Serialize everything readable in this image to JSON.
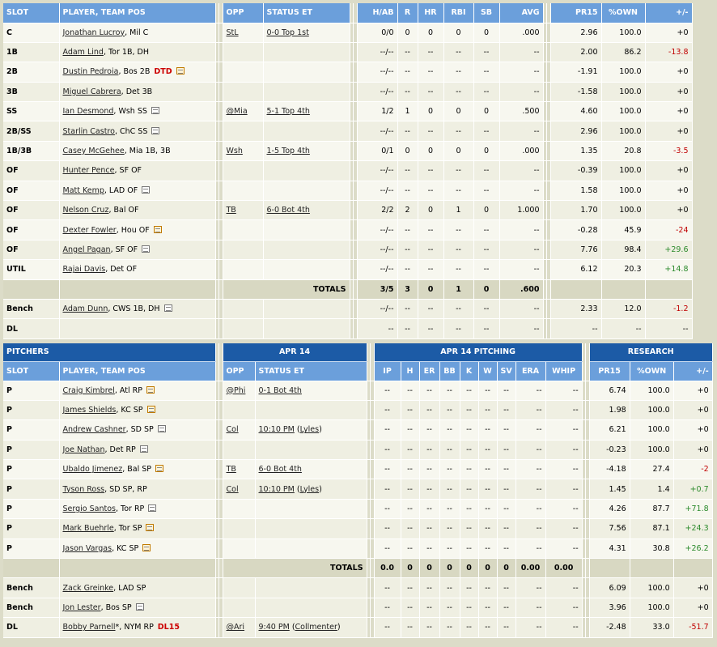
{
  "batters": {
    "headers": {
      "slot": "SLOT",
      "player": "PLAYER, TEAM POS",
      "opp": "OPP",
      "status": "STATUS ET",
      "hab": "H/AB",
      "r": "R",
      "hr": "HR",
      "rbi": "RBI",
      "sb": "SB",
      "avg": "AVG",
      "pr15": "PR15",
      "own": "%OWN",
      "pm": "+/-"
    },
    "rows": [
      {
        "slot": "C",
        "player": "Jonathan Lucroy",
        "team": ", Mil C",
        "note": "",
        "status_tag": "",
        "opp": "StL",
        "status": "0-0 Top 1st",
        "hab": "0/0",
        "r": "0",
        "hr": "0",
        "rbi": "0",
        "sb": "0",
        "avg": ".000",
        "pr15": "2.96",
        "own": "100.0",
        "pm": "+0",
        "pm_color": "#000000"
      },
      {
        "slot": "1B",
        "player": "Adam Lind",
        "team": ", Tor 1B, DH",
        "note": "",
        "status_tag": "",
        "opp": "",
        "status": "",
        "hab": "--/--",
        "r": "--",
        "hr": "--",
        "rbi": "--",
        "sb": "--",
        "avg": "--",
        "pr15": "2.00",
        "own": "86.2",
        "pm": "-13.8",
        "pm_color": "#c00000"
      },
      {
        "slot": "2B",
        "player": "Dustin Pedroia",
        "team": ", Bos 2B",
        "note": "new",
        "status_tag": "DTD",
        "opp": "",
        "status": "",
        "hab": "--/--",
        "r": "--",
        "hr": "--",
        "rbi": "--",
        "sb": "--",
        "avg": "--",
        "pr15": "-1.91",
        "own": "100.0",
        "pm": "+0",
        "pm_color": "#000000"
      },
      {
        "slot": "3B",
        "player": "Miguel Cabrera",
        "team": ", Det 3B",
        "note": "",
        "status_tag": "",
        "opp": "",
        "status": "",
        "hab": "--/--",
        "r": "--",
        "hr": "--",
        "rbi": "--",
        "sb": "--",
        "avg": "--",
        "pr15": "-1.58",
        "own": "100.0",
        "pm": "+0",
        "pm_color": "#000000"
      },
      {
        "slot": "SS",
        "player": "Ian Desmond",
        "team": ", Wsh SS",
        "note": "old",
        "status_tag": "",
        "opp": "@Mia",
        "status": "5-1 Top 4th",
        "hab": "1/2",
        "r": "1",
        "hr": "0",
        "rbi": "0",
        "sb": "0",
        "avg": ".500",
        "pr15": "4.60",
        "own": "100.0",
        "pm": "+0",
        "pm_color": "#000000"
      },
      {
        "slot": "2B/SS",
        "player": "Starlin Castro",
        "team": ", ChC SS",
        "note": "old",
        "status_tag": "",
        "opp": "",
        "status": "",
        "hab": "--/--",
        "r": "--",
        "hr": "--",
        "rbi": "--",
        "sb": "--",
        "avg": "--",
        "pr15": "2.96",
        "own": "100.0",
        "pm": "+0",
        "pm_color": "#000000"
      },
      {
        "slot": "1B/3B",
        "player": "Casey McGehee",
        "team": ", Mia 1B, 3B",
        "note": "",
        "status_tag": "",
        "opp": "Wsh",
        "status": "1-5 Top 4th",
        "hab": "0/1",
        "r": "0",
        "hr": "0",
        "rbi": "0",
        "sb": "0",
        "avg": ".000",
        "pr15": "1.35",
        "own": "20.8",
        "pm": "-3.5",
        "pm_color": "#c00000"
      },
      {
        "slot": "OF",
        "player": "Hunter Pence",
        "team": ", SF OF",
        "note": "",
        "status_tag": "",
        "opp": "",
        "status": "",
        "hab": "--/--",
        "r": "--",
        "hr": "--",
        "rbi": "--",
        "sb": "--",
        "avg": "--",
        "pr15": "-0.39",
        "own": "100.0",
        "pm": "+0",
        "pm_color": "#000000"
      },
      {
        "slot": "OF",
        "player": "Matt Kemp",
        "team": ", LAD OF",
        "note": "old",
        "status_tag": "",
        "opp": "",
        "status": "",
        "hab": "--/--",
        "r": "--",
        "hr": "--",
        "rbi": "--",
        "sb": "--",
        "avg": "--",
        "pr15": "1.58",
        "own": "100.0",
        "pm": "+0",
        "pm_color": "#000000"
      },
      {
        "slot": "OF",
        "player": "Nelson Cruz",
        "team": ", Bal OF",
        "note": "",
        "status_tag": "",
        "opp": "TB",
        "status": "6-0 Bot 4th",
        "hab": "2/2",
        "r": "2",
        "hr": "0",
        "rbi": "1",
        "sb": "0",
        "avg": "1.000",
        "pr15": "1.70",
        "own": "100.0",
        "pm": "+0",
        "pm_color": "#000000"
      },
      {
        "slot": "OF",
        "player": "Dexter Fowler",
        "team": ", Hou OF",
        "note": "new",
        "status_tag": "",
        "opp": "",
        "status": "",
        "hab": "--/--",
        "r": "--",
        "hr": "--",
        "rbi": "--",
        "sb": "--",
        "avg": "--",
        "pr15": "-0.28",
        "own": "45.9",
        "pm": "-24",
        "pm_color": "#c00000"
      },
      {
        "slot": "OF",
        "player": "Angel Pagan",
        "team": ", SF OF",
        "note": "old",
        "status_tag": "",
        "opp": "",
        "status": "",
        "hab": "--/--",
        "r": "--",
        "hr": "--",
        "rbi": "--",
        "sb": "--",
        "avg": "--",
        "pr15": "7.76",
        "own": "98.4",
        "pm": "+29.6",
        "pm_color": "#2b8a2b"
      },
      {
        "slot": "UTIL",
        "player": "Rajai Davis",
        "team": ", Det OF",
        "note": "",
        "status_tag": "",
        "opp": "",
        "status": "",
        "hab": "--/--",
        "r": "--",
        "hr": "--",
        "rbi": "--",
        "sb": "--",
        "avg": "--",
        "pr15": "6.12",
        "own": "20.3",
        "pm": "+14.8",
        "pm_color": "#2b8a2b"
      }
    ],
    "totals": {
      "label": "TOTALS",
      "hab": "3/5",
      "r": "3",
      "hr": "0",
      "rbi": "1",
      "sb": "0",
      "avg": ".600"
    },
    "bench": [
      {
        "slot": "Bench",
        "player": "Adam Dunn",
        "team": ", CWS 1B, DH",
        "note": "old",
        "status_tag": "",
        "opp": "",
        "status": "",
        "hab": "--/--",
        "r": "--",
        "hr": "--",
        "rbi": "--",
        "sb": "--",
        "avg": "--",
        "pr15": "2.33",
        "own": "12.0",
        "pm": "-1.2",
        "pm_color": "#c00000"
      },
      {
        "slot": "DL",
        "player": "",
        "team": "",
        "note": "",
        "status_tag": "",
        "opp": "",
        "status": "",
        "hab": "--",
        "r": "--",
        "hr": "--",
        "rbi": "--",
        "sb": "--",
        "avg": "--",
        "pr15": "--",
        "own": "--",
        "pm": "--",
        "pm_color": "#000000"
      }
    ]
  },
  "pitchers": {
    "captions": {
      "pitchers": "PITCHERS",
      "date": "APR 14",
      "pitching": "APR 14 PITCHING",
      "research": "RESEARCH"
    },
    "headers": {
      "slot": "SLOT",
      "player": "PLAYER, TEAM POS",
      "opp": "OPP",
      "status": "STATUS ET",
      "ip": "IP",
      "h": "H",
      "er": "ER",
      "bb": "BB",
      "k": "K",
      "w": "W",
      "sv": "SV",
      "era": "ERA",
      "whip": "WHIP",
      "pr15": "PR15",
      "own": "%OWN",
      "pm": "+/-"
    },
    "rows": [
      {
        "slot": "P",
        "player": "Craig Kimbrel",
        "team": ", Atl RP",
        "note": "new",
        "status_tag": "",
        "opp": "@Phi",
        "status": "0-1 Bot 4th",
        "status_link": "",
        "ip": "--",
        "h": "--",
        "er": "--",
        "bb": "--",
        "k": "--",
        "w": "--",
        "sv": "--",
        "era": "--",
        "whip": "--",
        "pr15": "6.74",
        "own": "100.0",
        "pm": "+0",
        "pm_color": "#000000"
      },
      {
        "slot": "P",
        "player": "James Shields",
        "team": ", KC SP",
        "note": "new",
        "status_tag": "",
        "opp": "",
        "status": "",
        "status_link": "",
        "ip": "--",
        "h": "--",
        "er": "--",
        "bb": "--",
        "k": "--",
        "w": "--",
        "sv": "--",
        "era": "--",
        "whip": "--",
        "pr15": "1.98",
        "own": "100.0",
        "pm": "+0",
        "pm_color": "#000000"
      },
      {
        "slot": "P",
        "player": "Andrew Cashner",
        "team": ", SD SP",
        "note": "old",
        "status_tag": "",
        "opp": "Col",
        "status": "10:10 PM",
        "status_link": "Lyles",
        "ip": "--",
        "h": "--",
        "er": "--",
        "bb": "--",
        "k": "--",
        "w": "--",
        "sv": "--",
        "era": "--",
        "whip": "--",
        "pr15": "6.21",
        "own": "100.0",
        "pm": "+0",
        "pm_color": "#000000"
      },
      {
        "slot": "P",
        "player": "Joe Nathan",
        "team": ", Det RP",
        "note": "old",
        "status_tag": "",
        "opp": "",
        "status": "",
        "status_link": "",
        "ip": "--",
        "h": "--",
        "er": "--",
        "bb": "--",
        "k": "--",
        "w": "--",
        "sv": "--",
        "era": "--",
        "whip": "--",
        "pr15": "-0.23",
        "own": "100.0",
        "pm": "+0",
        "pm_color": "#000000"
      },
      {
        "slot": "P",
        "player": "Ubaldo Jimenez",
        "team": ", Bal SP",
        "note": "new",
        "status_tag": "",
        "opp": "TB",
        "status": "6-0 Bot 4th",
        "status_link": "",
        "ip": "--",
        "h": "--",
        "er": "--",
        "bb": "--",
        "k": "--",
        "w": "--",
        "sv": "--",
        "era": "--",
        "whip": "--",
        "pr15": "-4.18",
        "own": "27.4",
        "pm": "-2",
        "pm_color": "#c00000"
      },
      {
        "slot": "P",
        "player": "Tyson Ross",
        "team": ", SD SP, RP",
        "note": "",
        "status_tag": "",
        "opp": "Col",
        "status": "10:10 PM",
        "status_link": "Lyles",
        "ip": "--",
        "h": "--",
        "er": "--",
        "bb": "--",
        "k": "--",
        "w": "--",
        "sv": "--",
        "era": "--",
        "whip": "--",
        "pr15": "1.45",
        "own": "1.4",
        "pm": "+0.7",
        "pm_color": "#2b8a2b"
      },
      {
        "slot": "P",
        "player": "Sergio Santos",
        "team": ", Tor RP",
        "note": "old",
        "status_tag": "",
        "opp": "",
        "status": "",
        "status_link": "",
        "ip": "--",
        "h": "--",
        "er": "--",
        "bb": "--",
        "k": "--",
        "w": "--",
        "sv": "--",
        "era": "--",
        "whip": "--",
        "pr15": "4.26",
        "own": "87.7",
        "pm": "+71.8",
        "pm_color": "#2b8a2b"
      },
      {
        "slot": "P",
        "player": "Mark Buehrle",
        "team": ", Tor SP",
        "note": "new",
        "status_tag": "",
        "opp": "",
        "status": "",
        "status_link": "",
        "ip": "--",
        "h": "--",
        "er": "--",
        "bb": "--",
        "k": "--",
        "w": "--",
        "sv": "--",
        "era": "--",
        "whip": "--",
        "pr15": "7.56",
        "own": "87.1",
        "pm": "+24.3",
        "pm_color": "#2b8a2b"
      },
      {
        "slot": "P",
        "player": "Jason Vargas",
        "team": ", KC SP",
        "note": "new",
        "status_tag": "",
        "opp": "",
        "status": "",
        "status_link": "",
        "ip": "--",
        "h": "--",
        "er": "--",
        "bb": "--",
        "k": "--",
        "w": "--",
        "sv": "--",
        "era": "--",
        "whip": "--",
        "pr15": "4.31",
        "own": "30.8",
        "pm": "+26.2",
        "pm_color": "#2b8a2b"
      }
    ],
    "totals": {
      "label": "TOTALS",
      "ip": "0.0",
      "h": "0",
      "er": "0",
      "bb": "0",
      "k": "0",
      "w": "0",
      "sv": "0",
      "era": "0.00",
      "whip": "0.00"
    },
    "bench": [
      {
        "slot": "Bench",
        "player": "Zack Greinke",
        "team": ", LAD SP",
        "note": "",
        "status_tag": "",
        "opp": "",
        "status": "",
        "status_link": "",
        "ip": "--",
        "h": "--",
        "er": "--",
        "bb": "--",
        "k": "--",
        "w": "--",
        "sv": "--",
        "era": "--",
        "whip": "--",
        "pr15": "6.09",
        "own": "100.0",
        "pm": "+0",
        "pm_color": "#000000"
      },
      {
        "slot": "Bench",
        "player": "Jon Lester",
        "team": ", Bos SP",
        "note": "old",
        "status_tag": "",
        "opp": "",
        "status": "",
        "status_link": "",
        "ip": "--",
        "h": "--",
        "er": "--",
        "bb": "--",
        "k": "--",
        "w": "--",
        "sv": "--",
        "era": "--",
        "whip": "--",
        "pr15": "3.96",
        "own": "100.0",
        "pm": "+0",
        "pm_color": "#000000"
      },
      {
        "slot": "DL",
        "player": "Bobby Parnell",
        "team": "*, NYM RP",
        "note": "",
        "status_tag": "DL15",
        "opp": "@Ari",
        "status": "9:40 PM",
        "status_link": "Collmenter",
        "ip": "--",
        "h": "--",
        "er": "--",
        "bb": "--",
        "k": "--",
        "w": "--",
        "sv": "--",
        "era": "--",
        "whip": "--",
        "pr15": "-2.48",
        "own": "33.0",
        "pm": "-51.7",
        "pm_color": "#c00000"
      }
    ]
  }
}
